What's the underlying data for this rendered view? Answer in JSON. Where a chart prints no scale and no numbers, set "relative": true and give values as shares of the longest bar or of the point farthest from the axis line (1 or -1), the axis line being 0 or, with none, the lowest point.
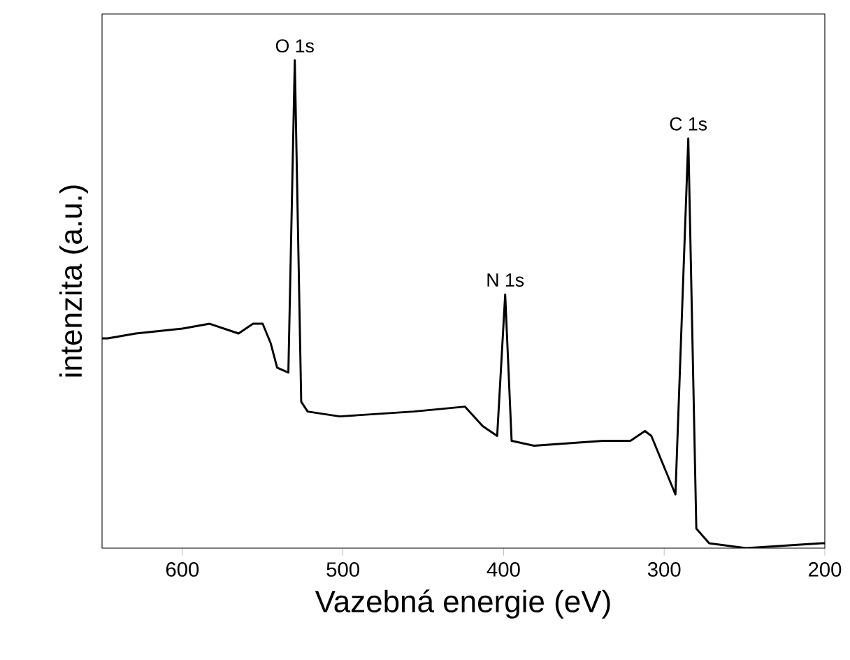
{
  "chart_data": {
    "type": "line",
    "xlabel": "Vazebná energie (eV)",
    "ylabel": "intenzita (a.u.)",
    "relative": true,
    "color": "#000000",
    "xlim": [
      650,
      200
    ],
    "xticks": [
      600,
      500,
      400,
      300,
      200
    ],
    "x": [
      650,
      646.5,
      629,
      600,
      583,
      565,
      556,
      550,
      545,
      541,
      534,
      530,
      526,
      522,
      502,
      456,
      424,
      413,
      404,
      399,
      395,
      381,
      338,
      321,
      312,
      308,
      293,
      285,
      280,
      272,
      249,
      202,
      200
    ],
    "values": [
      0.43,
      0.43,
      0.44,
      0.45,
      0.46,
      0.44,
      0.46,
      0.46,
      0.42,
      0.37,
      0.36,
      1,
      0.3,
      0.28,
      0.27,
      0.28,
      0.29,
      0.25,
      0.23,
      0.52,
      0.22,
      0.21,
      0.22,
      0.22,
      0.24,
      0.23,
      0.11,
      0.84,
      0.04,
      0.01,
      0,
      0.01,
      0.01
    ],
    "annotations": [
      {
        "text": "O 1s",
        "x": 530,
        "y": 1
      },
      {
        "text": "N 1s",
        "x": 399,
        "y": 0.52
      },
      {
        "text": "C 1s",
        "x": 285,
        "y": 0.84
      }
    ]
  }
}
